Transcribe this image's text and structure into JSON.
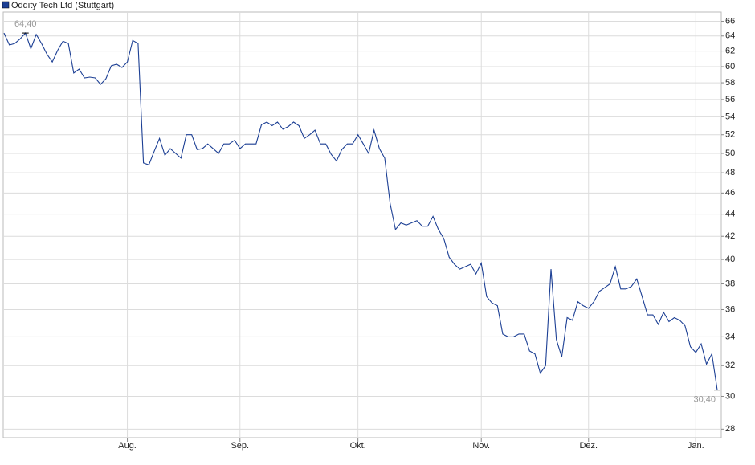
{
  "chart_data": {
    "type": "line",
    "log_scale": true,
    "grid": true,
    "legend": "top-left",
    "series": [
      {
        "name": "Oddity Tech Ltd (Stuttgart)",
        "color": "#1c3f94",
        "values": [
          64.4,
          62.8,
          63,
          63.6,
          64.4,
          62.3,
          64.2,
          63,
          61.6,
          60.6,
          62.1,
          63.3,
          63,
          59.2,
          59.7,
          58.6,
          58.7,
          58.6,
          57.8,
          58.5,
          60.1,
          60.3,
          59.9,
          60.6,
          63.4,
          63,
          49,
          48.8,
          50.2,
          51.6,
          49.8,
          50.5,
          50,
          49.5,
          52,
          52,
          50.4,
          50.5,
          51,
          50.5,
          50,
          51,
          51,
          51.4,
          50.5,
          51,
          51,
          51,
          53.1,
          53.4,
          53,
          53.4,
          52.6,
          52.9,
          53.4,
          53,
          51.6,
          52,
          52.5,
          51,
          51,
          49.9,
          49.2,
          50.4,
          51,
          51,
          52,
          51,
          50,
          52.5,
          50.5,
          49.5,
          45,
          42.6,
          43.2,
          43,
          43.2,
          43.4,
          42.9,
          42.9,
          43.8,
          42.6,
          41.8,
          40.2,
          39.6,
          39.2,
          39.4,
          39.6,
          38.8,
          39.7,
          37,
          36.5,
          36.3,
          34.2,
          34,
          34,
          34.2,
          34.2,
          33,
          32.8,
          31.5,
          32,
          39.2,
          33.8,
          32.6,
          35.4,
          35.2,
          36.6,
          36.3,
          36.1,
          36.6,
          37.4,
          37.7,
          38,
          39.4,
          37.6,
          37.6,
          37.8,
          38.4,
          37,
          35.6,
          35.6,
          34.9,
          35.8,
          35.1,
          35.4,
          35.2,
          34.8,
          33.3,
          32.9,
          33.5,
          32.1,
          32.8,
          30.4
        ]
      }
    ],
    "xlim": [
      0,
      133
    ],
    "xticks": [
      {
        "value": 23,
        "label": "Aug."
      },
      {
        "value": 44,
        "label": "Sep."
      },
      {
        "value": 66,
        "label": "Okt."
      },
      {
        "value": 89,
        "label": "Nov."
      },
      {
        "value": 109,
        "label": "Dez."
      },
      {
        "value": 129,
        "label": "Jan."
      }
    ],
    "ylim": [
      27.5,
      67.3
    ],
    "yticks": [
      28,
      30,
      32,
      34,
      36,
      38,
      40,
      42,
      44,
      46,
      48,
      50,
      52,
      54,
      56,
      58,
      60,
      62,
      64,
      66
    ],
    "annotations": [
      {
        "label": "64,40",
        "value": 64.4,
        "x": 4,
        "position": "above"
      },
      {
        "label": "30,40",
        "value": 30.4,
        "x": 133,
        "position": "below-left"
      }
    ]
  }
}
